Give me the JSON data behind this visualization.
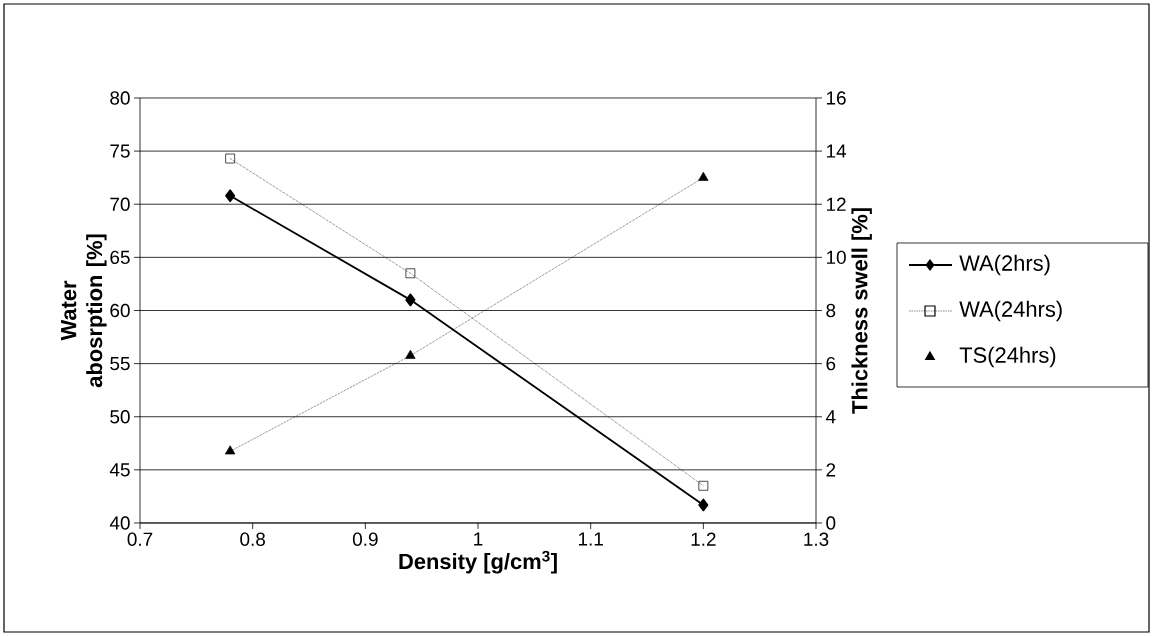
{
  "chart_data": {
    "type": "line",
    "xlabel": "Density [g/cm$^{3}$]",
    "ylabel": "Water abosrption [%]",
    "y2label": "Thickness swell [%]",
    "xlim": [
      0.7,
      1.3
    ],
    "xticks": [
      0.7,
      0.8,
      0.9,
      1,
      1.1,
      1.2,
      1.3
    ],
    "ylim": [
      40,
      80
    ],
    "yticks": [
      40,
      45,
      50,
      55,
      60,
      65,
      70,
      75,
      80
    ],
    "y2lim": [
      0,
      16
    ],
    "y2ticks": [
      0,
      2,
      4,
      6,
      8,
      10,
      12,
      14,
      16
    ],
    "grid": "y",
    "legend": "right",
    "series": [
      {
        "name": "WA(2hrs)",
        "color": "#000000",
        "x": [
          0.78,
          0.94,
          1.2
        ],
        "values": [
          70.8,
          61.0,
          41.7
        ],
        "marker": "diamond",
        "line_style": "solid"
      },
      {
        "name": "WA(24hrs)",
        "color": "#000000",
        "x": [
          0.78,
          0.94,
          1.2
        ],
        "values": [
          74.3,
          63.5,
          43.5
        ],
        "marker": "square",
        "line_style": "dotted"
      },
      {
        "name": "TS(24hrs)",
        "color": "#000000",
        "x": [
          0.78,
          0.94,
          1.2
        ],
        "values": [
          2.7,
          6.3,
          13.0
        ],
        "marker": "triangle",
        "line_style": "dotted",
        "axis": "y2"
      }
    ]
  }
}
